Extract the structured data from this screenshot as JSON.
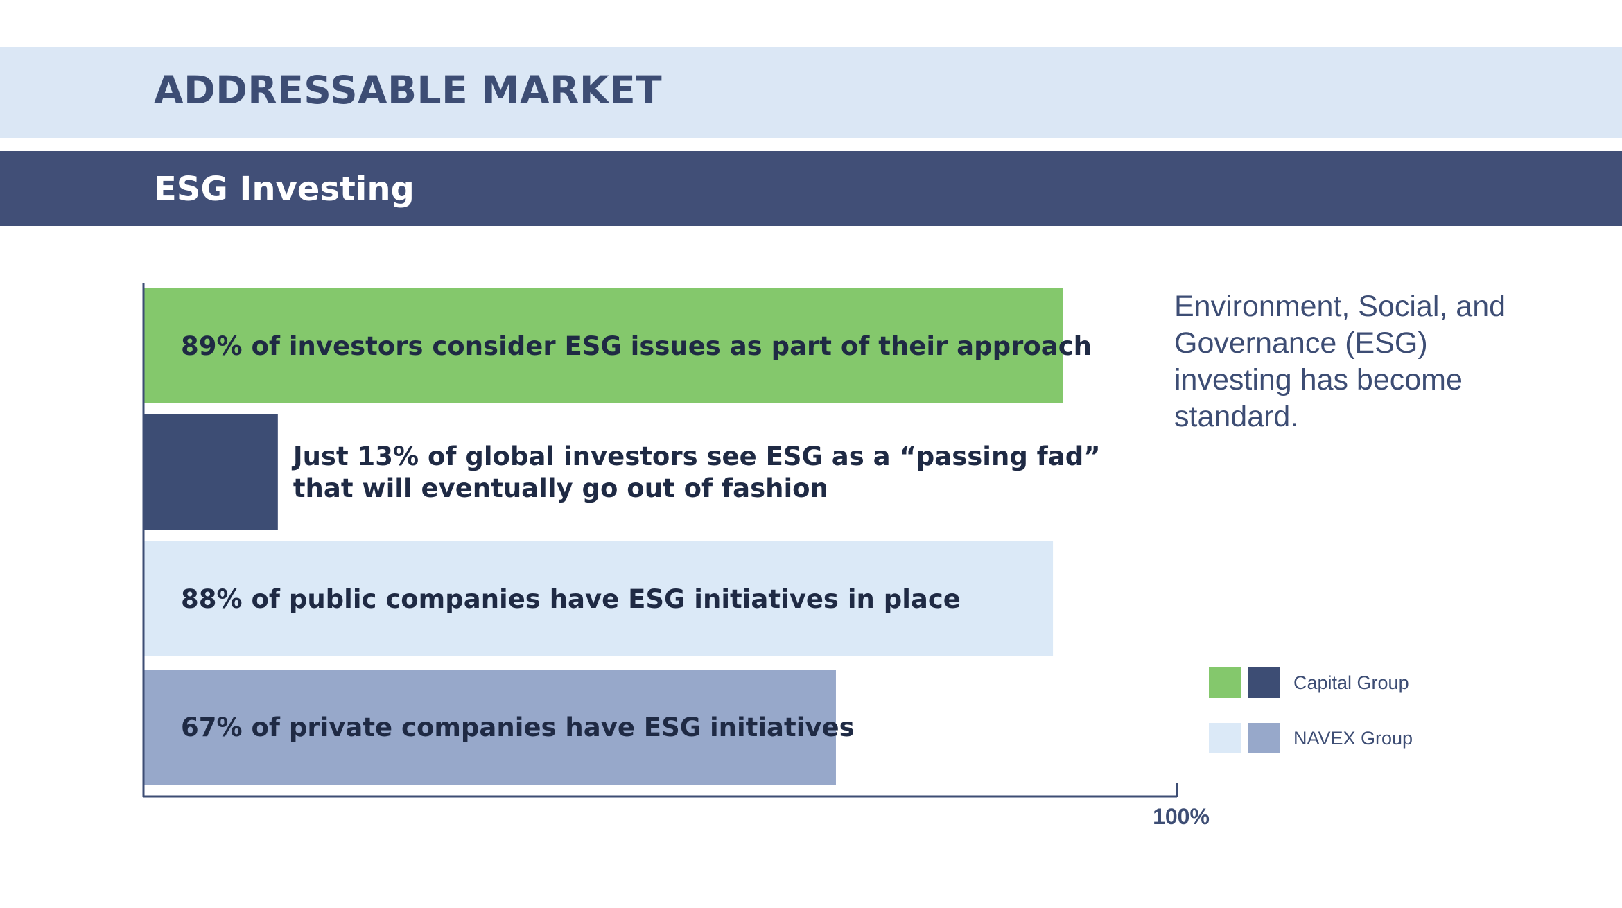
{
  "header": {
    "title": "ADDRESSABLE MARKET",
    "subtitle": "ESG Investing"
  },
  "side_note": "Environment, Social, and Governance (ESG) investing has become standard.",
  "legend": [
    {
      "name": "Capital Group",
      "colors": [
        "#84c86c",
        "#3d4d74"
      ]
    },
    {
      "name": "NAVEX Group",
      "colors": [
        "#dbe9f7",
        "#97a8ca"
      ]
    }
  ],
  "chart_data": {
    "type": "bar",
    "orientation": "horizontal",
    "categories": [
      "89% of investors consider ESG issues as part of their approach",
      "Just 13% of global investors see ESG as a “passing fad” that will eventually go out of fashion",
      "88% of public companies have ESG initiatives in place",
      "67% of private companies have ESG initiatives"
    ],
    "values": [
      89,
      13,
      88,
      67
    ],
    "bars": [
      {
        "value": 89,
        "label_lines": [
          "89% of investors consider ESG issues as part of their approach"
        ],
        "group": "Capital Group",
        "color": "#84c86c"
      },
      {
        "value": 13,
        "label_lines": [
          "Just 13% of global investors see ESG as a “passing fad”",
          "that will eventually go out of fashion"
        ],
        "group": "Capital Group",
        "color": "#3d4d74"
      },
      {
        "value": 88,
        "label_lines": [
          "88% of public companies have ESG initiatives in place"
        ],
        "group": "NAVEX Group",
        "color": "#dbe9f7"
      },
      {
        "value": 67,
        "label_lines": [
          "67% of private companies have ESG initiatives"
        ],
        "group": "NAVEX Group",
        "color": "#97a8ca"
      }
    ],
    "xlim": [
      0,
      100
    ],
    "x_ticks": [
      {
        "value": 100,
        "label": "100%"
      }
    ],
    "grid": false,
    "legend_position": "right",
    "axis_color": "#3d4d74"
  }
}
